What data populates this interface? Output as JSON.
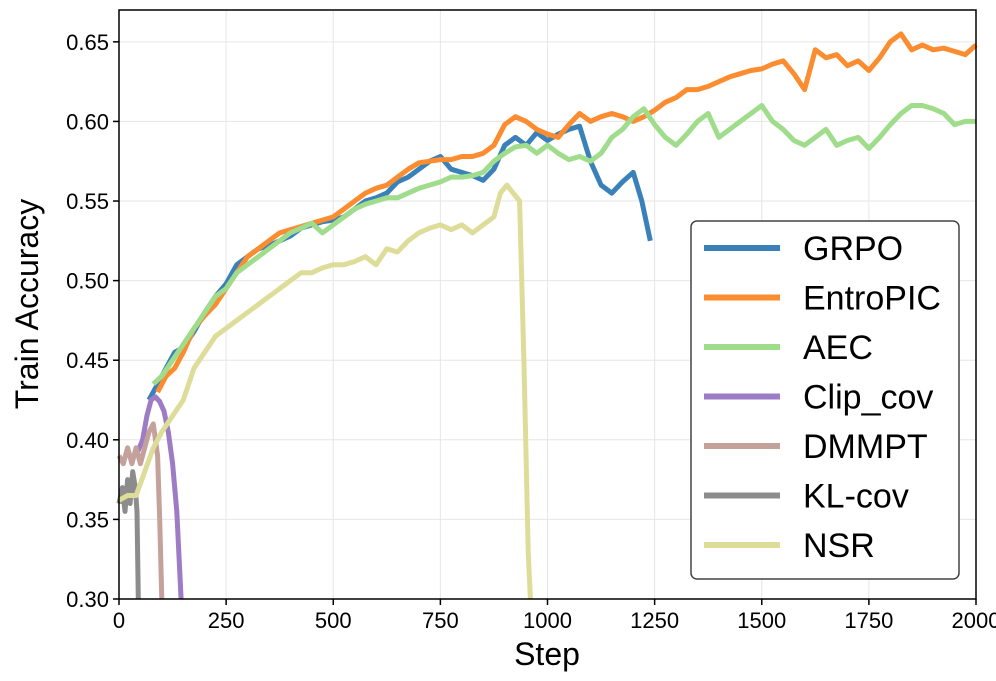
{
  "chart_data": {
    "type": "line",
    "title": "",
    "xlabel": "Step",
    "ylabel": "Train Accuracy",
    "xlim": [
      0,
      2000
    ],
    "ylim": [
      0.3,
      0.67
    ],
    "xticks": [
      0,
      250,
      500,
      750,
      1000,
      1250,
      1500,
      1750,
      2000
    ],
    "yticks": [
      0.3,
      0.35,
      0.4,
      0.45,
      0.5,
      0.55,
      0.6,
      0.65
    ],
    "grid": true,
    "legend_position": "lower-right",
    "series": [
      {
        "name": "GRPO",
        "color": "#3a81b9",
        "points": [
          [
            70,
            0.425
          ],
          [
            90,
            0.435
          ],
          [
            110,
            0.445
          ],
          [
            130,
            0.455
          ],
          [
            150,
            0.458
          ],
          [
            175,
            0.468
          ],
          [
            200,
            0.48
          ],
          [
            225,
            0.49
          ],
          [
            250,
            0.498
          ],
          [
            275,
            0.51
          ],
          [
            300,
            0.515
          ],
          [
            325,
            0.52
          ],
          [
            350,
            0.522
          ],
          [
            375,
            0.525
          ],
          [
            400,
            0.528
          ],
          [
            425,
            0.533
          ],
          [
            450,
            0.535
          ],
          [
            475,
            0.537
          ],
          [
            500,
            0.538
          ],
          [
            525,
            0.54
          ],
          [
            550,
            0.545
          ],
          [
            575,
            0.55
          ],
          [
            600,
            0.552
          ],
          [
            625,
            0.555
          ],
          [
            650,
            0.562
          ],
          [
            675,
            0.565
          ],
          [
            700,
            0.57
          ],
          [
            725,
            0.575
          ],
          [
            750,
            0.578
          ],
          [
            775,
            0.57
          ],
          [
            800,
            0.568
          ],
          [
            825,
            0.566
          ],
          [
            850,
            0.563
          ],
          [
            875,
            0.57
          ],
          [
            900,
            0.585
          ],
          [
            925,
            0.59
          ],
          [
            950,
            0.585
          ],
          [
            975,
            0.593
          ],
          [
            1000,
            0.588
          ],
          [
            1025,
            0.592
          ],
          [
            1050,
            0.595
          ],
          [
            1075,
            0.597
          ],
          [
            1100,
            0.575
          ],
          [
            1125,
            0.56
          ],
          [
            1150,
            0.555
          ],
          [
            1175,
            0.562
          ],
          [
            1200,
            0.568
          ],
          [
            1220,
            0.55
          ],
          [
            1240,
            0.525
          ]
        ]
      },
      {
        "name": "EntroPIC",
        "color": "#fb8c30",
        "points": [
          [
            90,
            0.43
          ],
          [
            110,
            0.44
          ],
          [
            130,
            0.445
          ],
          [
            150,
            0.455
          ],
          [
            175,
            0.47
          ],
          [
            200,
            0.478
          ],
          [
            225,
            0.485
          ],
          [
            250,
            0.495
          ],
          [
            275,
            0.505
          ],
          [
            300,
            0.515
          ],
          [
            325,
            0.52
          ],
          [
            350,
            0.525
          ],
          [
            375,
            0.53
          ],
          [
            400,
            0.532
          ],
          [
            425,
            0.534
          ],
          [
            450,
            0.536
          ],
          [
            475,
            0.538
          ],
          [
            500,
            0.54
          ],
          [
            525,
            0.545
          ],
          [
            550,
            0.55
          ],
          [
            575,
            0.555
          ],
          [
            600,
            0.558
          ],
          [
            625,
            0.56
          ],
          [
            650,
            0.565
          ],
          [
            675,
            0.57
          ],
          [
            700,
            0.574
          ],
          [
            725,
            0.575
          ],
          [
            750,
            0.576
          ],
          [
            775,
            0.576
          ],
          [
            800,
            0.578
          ],
          [
            825,
            0.578
          ],
          [
            850,
            0.58
          ],
          [
            875,
            0.585
          ],
          [
            900,
            0.598
          ],
          [
            925,
            0.603
          ],
          [
            950,
            0.6
          ],
          [
            975,
            0.595
          ],
          [
            1000,
            0.592
          ],
          [
            1025,
            0.59
          ],
          [
            1050,
            0.598
          ],
          [
            1075,
            0.605
          ],
          [
            1100,
            0.6
          ],
          [
            1125,
            0.603
          ],
          [
            1150,
            0.605
          ],
          [
            1175,
            0.603
          ],
          [
            1200,
            0.6
          ],
          [
            1225,
            0.603
          ],
          [
            1250,
            0.607
          ],
          [
            1275,
            0.612
          ],
          [
            1300,
            0.615
          ],
          [
            1325,
            0.62
          ],
          [
            1350,
            0.62
          ],
          [
            1375,
            0.622
          ],
          [
            1400,
            0.625
          ],
          [
            1425,
            0.628
          ],
          [
            1450,
            0.63
          ],
          [
            1475,
            0.632
          ],
          [
            1500,
            0.633
          ],
          [
            1525,
            0.636
          ],
          [
            1550,
            0.638
          ],
          [
            1575,
            0.63
          ],
          [
            1600,
            0.62
          ],
          [
            1625,
            0.645
          ],
          [
            1650,
            0.64
          ],
          [
            1675,
            0.642
          ],
          [
            1700,
            0.635
          ],
          [
            1725,
            0.638
          ],
          [
            1750,
            0.632
          ],
          [
            1775,
            0.64
          ],
          [
            1800,
            0.65
          ],
          [
            1825,
            0.655
          ],
          [
            1850,
            0.645
          ],
          [
            1875,
            0.648
          ],
          [
            1900,
            0.645
          ],
          [
            1925,
            0.646
          ],
          [
            1950,
            0.644
          ],
          [
            1975,
            0.642
          ],
          [
            2000,
            0.648
          ]
        ]
      },
      {
        "name": "AEC",
        "color": "#9fdc8c",
        "points": [
          [
            80,
            0.435
          ],
          [
            100,
            0.44
          ],
          [
            125,
            0.45
          ],
          [
            150,
            0.46
          ],
          [
            175,
            0.47
          ],
          [
            200,
            0.48
          ],
          [
            225,
            0.49
          ],
          [
            250,
            0.495
          ],
          [
            275,
            0.505
          ],
          [
            300,
            0.51
          ],
          [
            325,
            0.515
          ],
          [
            350,
            0.52
          ],
          [
            375,
            0.525
          ],
          [
            400,
            0.53
          ],
          [
            425,
            0.533
          ],
          [
            450,
            0.536
          ],
          [
            475,
            0.53
          ],
          [
            500,
            0.535
          ],
          [
            525,
            0.54
          ],
          [
            550,
            0.545
          ],
          [
            575,
            0.548
          ],
          [
            600,
            0.55
          ],
          [
            625,
            0.552
          ],
          [
            650,
            0.552
          ],
          [
            675,
            0.555
          ],
          [
            700,
            0.558
          ],
          [
            725,
            0.56
          ],
          [
            750,
            0.562
          ],
          [
            775,
            0.565
          ],
          [
            800,
            0.565
          ],
          [
            825,
            0.566
          ],
          [
            850,
            0.568
          ],
          [
            875,
            0.575
          ],
          [
            900,
            0.58
          ],
          [
            925,
            0.584
          ],
          [
            950,
            0.585
          ],
          [
            975,
            0.58
          ],
          [
            1000,
            0.585
          ],
          [
            1025,
            0.58
          ],
          [
            1050,
            0.576
          ],
          [
            1075,
            0.578
          ],
          [
            1100,
            0.575
          ],
          [
            1125,
            0.58
          ],
          [
            1150,
            0.59
          ],
          [
            1175,
            0.595
          ],
          [
            1200,
            0.603
          ],
          [
            1225,
            0.608
          ],
          [
            1250,
            0.598
          ],
          [
            1275,
            0.59
          ],
          [
            1300,
            0.585
          ],
          [
            1325,
            0.592
          ],
          [
            1350,
            0.6
          ],
          [
            1375,
            0.605
          ],
          [
            1400,
            0.59
          ],
          [
            1425,
            0.595
          ],
          [
            1450,
            0.6
          ],
          [
            1475,
            0.605
          ],
          [
            1500,
            0.61
          ],
          [
            1525,
            0.6
          ],
          [
            1550,
            0.595
          ],
          [
            1575,
            0.588
          ],
          [
            1600,
            0.585
          ],
          [
            1625,
            0.59
          ],
          [
            1650,
            0.595
          ],
          [
            1675,
            0.585
          ],
          [
            1700,
            0.588
          ],
          [
            1725,
            0.59
          ],
          [
            1750,
            0.583
          ],
          [
            1775,
            0.59
          ],
          [
            1800,
            0.598
          ],
          [
            1825,
            0.605
          ],
          [
            1850,
            0.61
          ],
          [
            1875,
            0.61
          ],
          [
            1900,
            0.608
          ],
          [
            1925,
            0.605
          ],
          [
            1950,
            0.598
          ],
          [
            1975,
            0.6
          ],
          [
            2000,
            0.6
          ]
        ]
      },
      {
        "name": "Clip_cov",
        "color": "#9d7bc5",
        "points": [
          [
            40,
            0.39
          ],
          [
            55,
            0.4
          ],
          [
            65,
            0.415
          ],
          [
            75,
            0.425
          ],
          [
            85,
            0.427
          ],
          [
            95,
            0.424
          ],
          [
            105,
            0.418
          ],
          [
            115,
            0.405
          ],
          [
            125,
            0.385
          ],
          [
            135,
            0.355
          ],
          [
            145,
            0.3
          ]
        ]
      },
      {
        "name": "DMMPT",
        "color": "#c5a19b",
        "points": [
          [
            0,
            0.39
          ],
          [
            10,
            0.385
          ],
          [
            20,
            0.395
          ],
          [
            30,
            0.385
          ],
          [
            40,
            0.395
          ],
          [
            50,
            0.385
          ],
          [
            60,
            0.395
          ],
          [
            70,
            0.405
          ],
          [
            80,
            0.41
          ],
          [
            90,
            0.39
          ],
          [
            95,
            0.35
          ],
          [
            100,
            0.3
          ]
        ]
      },
      {
        "name": "KL-cov",
        "color": "#8c8c8c",
        "points": [
          [
            0,
            0.36
          ],
          [
            8,
            0.37
          ],
          [
            14,
            0.355
          ],
          [
            20,
            0.375
          ],
          [
            26,
            0.36
          ],
          [
            32,
            0.38
          ],
          [
            38,
            0.37
          ],
          [
            42,
            0.355
          ],
          [
            45,
            0.3
          ]
        ]
      },
      {
        "name": "NSR",
        "color": "#dddd99",
        "points": [
          [
            0,
            0.362
          ],
          [
            20,
            0.365
          ],
          [
            40,
            0.365
          ],
          [
            60,
            0.38
          ],
          [
            80,
            0.395
          ],
          [
            100,
            0.405
          ],
          [
            125,
            0.415
          ],
          [
            150,
            0.425
          ],
          [
            175,
            0.445
          ],
          [
            200,
            0.455
          ],
          [
            225,
            0.465
          ],
          [
            250,
            0.47
          ],
          [
            275,
            0.475
          ],
          [
            300,
            0.48
          ],
          [
            325,
            0.485
          ],
          [
            350,
            0.49
          ],
          [
            375,
            0.495
          ],
          [
            400,
            0.5
          ],
          [
            425,
            0.505
          ],
          [
            450,
            0.505
          ],
          [
            475,
            0.508
          ],
          [
            500,
            0.51
          ],
          [
            525,
            0.51
          ],
          [
            550,
            0.512
          ],
          [
            575,
            0.515
          ],
          [
            600,
            0.51
          ],
          [
            625,
            0.52
          ],
          [
            650,
            0.518
          ],
          [
            675,
            0.525
          ],
          [
            700,
            0.53
          ],
          [
            725,
            0.533
          ],
          [
            750,
            0.535
          ],
          [
            775,
            0.532
          ],
          [
            800,
            0.535
          ],
          [
            825,
            0.53
          ],
          [
            850,
            0.535
          ],
          [
            875,
            0.54
          ],
          [
            890,
            0.555
          ],
          [
            905,
            0.56
          ],
          [
            920,
            0.555
          ],
          [
            935,
            0.55
          ],
          [
            945,
            0.45
          ],
          [
            955,
            0.33
          ],
          [
            960,
            0.3
          ]
        ]
      }
    ]
  }
}
